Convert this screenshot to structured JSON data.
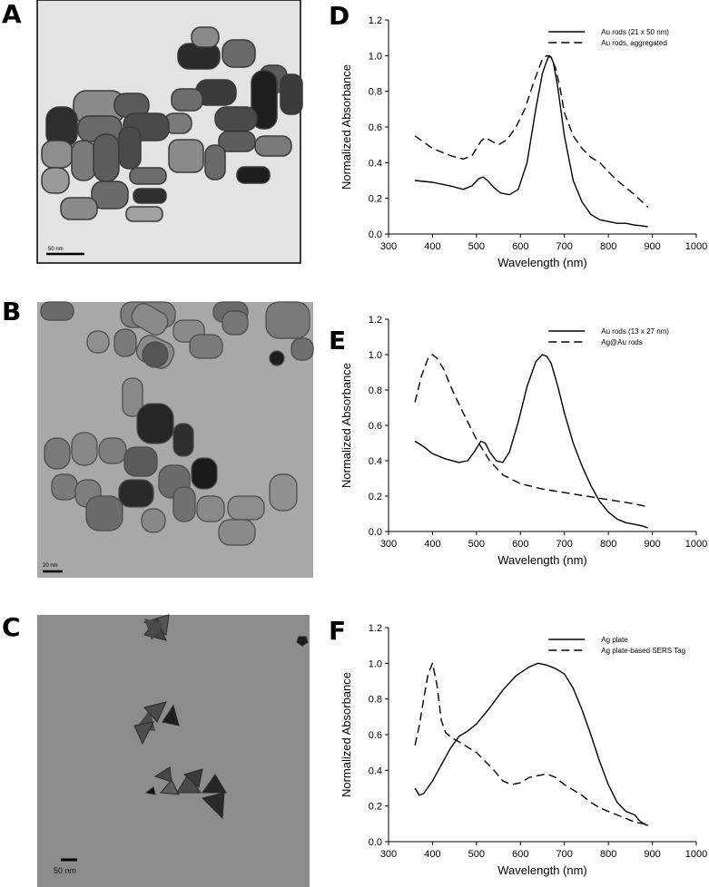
{
  "panels": {
    "A": {
      "letter": "A",
      "scalebar": "50 nm"
    },
    "B": {
      "letter": "B",
      "scalebar": "20 nm"
    },
    "C": {
      "letter": "C",
      "scalebar": "50 nm"
    },
    "D": {
      "letter": "D"
    },
    "E": {
      "letter": "E"
    },
    "F": {
      "letter": "F"
    }
  },
  "colors": {
    "line": "#000000",
    "tem_a_bg": "#e2e2e2",
    "tem_b_bg": "#a8a8a8",
    "tem_c_bg": "#8c8c8c"
  },
  "chart_data": [
    {
      "id": "D",
      "type": "line",
      "xlabel": "Wavelength (nm)",
      "ylabel": "Normalized Absorbance",
      "xlim": [
        300,
        1000
      ],
      "ylim": [
        0.0,
        1.2
      ],
      "xticks": [
        300,
        400,
        500,
        600,
        700,
        800,
        900,
        1000
      ],
      "yticks": [
        0.0,
        0.2,
        0.4,
        0.6,
        0.8,
        1.0,
        1.2
      ],
      "legend_position": "top-right",
      "series": [
        {
          "name": "Au rods (21 x 50 nm)",
          "style": "solid",
          "x": [
            360,
            400,
            440,
            470,
            490,
            505,
            515,
            525,
            540,
            555,
            575,
            595,
            615,
            635,
            650,
            660,
            665,
            670,
            675,
            685,
            700,
            720,
            740,
            760,
            780,
            800,
            820,
            840,
            860,
            880,
            890
          ],
          "y": [
            0.3,
            0.29,
            0.27,
            0.25,
            0.27,
            0.31,
            0.32,
            0.3,
            0.26,
            0.23,
            0.22,
            0.25,
            0.4,
            0.7,
            0.9,
            0.97,
            1.0,
            0.99,
            0.96,
            0.82,
            0.55,
            0.3,
            0.18,
            0.11,
            0.08,
            0.07,
            0.06,
            0.06,
            0.05,
            0.045,
            0.04
          ]
        },
        {
          "name": "Au rods, aggregated",
          "style": "dashed",
          "x": [
            360,
            400,
            440,
            470,
            490,
            510,
            520,
            535,
            550,
            570,
            590,
            610,
            630,
            650,
            660,
            670,
            680,
            690,
            700,
            720,
            740,
            760,
            780,
            800,
            820,
            840,
            860,
            890
          ],
          "y": [
            0.55,
            0.48,
            0.44,
            0.42,
            0.44,
            0.52,
            0.54,
            0.52,
            0.5,
            0.53,
            0.6,
            0.7,
            0.85,
            0.98,
            1.0,
            0.99,
            0.93,
            0.82,
            0.68,
            0.55,
            0.48,
            0.43,
            0.4,
            0.35,
            0.3,
            0.26,
            0.22,
            0.15
          ]
        }
      ]
    },
    {
      "id": "E",
      "type": "line",
      "xlabel": "Wavelength (nm)",
      "ylabel": "Normalized Absorbance",
      "xlim": [
        300,
        1000
      ],
      "ylim": [
        0.0,
        1.2
      ],
      "xticks": [
        300,
        400,
        500,
        600,
        700,
        800,
        900,
        1000
      ],
      "yticks": [
        0.0,
        0.2,
        0.4,
        0.6,
        0.8,
        1.0,
        1.2
      ],
      "legend_position": "top-right",
      "series": [
        {
          "name": "Au rods (13 x 27 nm)",
          "style": "solid",
          "x": [
            360,
            380,
            400,
            430,
            460,
            480,
            495,
            510,
            520,
            530,
            545,
            560,
            575,
            595,
            615,
            635,
            650,
            660,
            670,
            685,
            700,
            720,
            740,
            760,
            780,
            800,
            820,
            840,
            860,
            880,
            890
          ],
          "y": [
            0.51,
            0.48,
            0.44,
            0.41,
            0.39,
            0.4,
            0.45,
            0.51,
            0.5,
            0.45,
            0.4,
            0.39,
            0.45,
            0.62,
            0.82,
            0.96,
            1.0,
            0.99,
            0.95,
            0.82,
            0.67,
            0.5,
            0.37,
            0.26,
            0.17,
            0.11,
            0.07,
            0.05,
            0.04,
            0.03,
            0.02
          ]
        },
        {
          "name": "Ag@Au rods",
          "style": "dashed",
          "x": [
            360,
            375,
            390,
            400,
            410,
            425,
            445,
            470,
            500,
            530,
            560,
            600,
            650,
            700,
            750,
            800,
            850,
            890
          ],
          "y": [
            0.73,
            0.88,
            0.98,
            1.0,
            0.98,
            0.92,
            0.8,
            0.67,
            0.52,
            0.4,
            0.32,
            0.27,
            0.24,
            0.22,
            0.2,
            0.18,
            0.16,
            0.14
          ]
        }
      ]
    },
    {
      "id": "F",
      "type": "line",
      "xlabel": "Wavelength (nm)",
      "ylabel": "Normalized Absorbance",
      "xlim": [
        300,
        1000
      ],
      "ylim": [
        0.0,
        1.2
      ],
      "xticks": [
        300,
        400,
        500,
        600,
        700,
        800,
        900,
        1000
      ],
      "yticks": [
        0.0,
        0.2,
        0.4,
        0.6,
        0.8,
        1.0,
        1.2
      ],
      "legend_position": "top-right",
      "series": [
        {
          "name": "Ag plate",
          "style": "solid",
          "x": [
            360,
            370,
            380,
            400,
            420,
            440,
            460,
            480,
            500,
            530,
            560,
            590,
            620,
            640,
            660,
            680,
            700,
            720,
            740,
            760,
            780,
            800,
            820,
            840,
            860,
            870,
            880,
            890
          ],
          "y": [
            0.3,
            0.26,
            0.27,
            0.34,
            0.43,
            0.52,
            0.59,
            0.62,
            0.66,
            0.75,
            0.85,
            0.93,
            0.98,
            1.0,
            0.99,
            0.97,
            0.94,
            0.86,
            0.74,
            0.6,
            0.45,
            0.32,
            0.22,
            0.17,
            0.15,
            0.12,
            0.1,
            0.09
          ]
        },
        {
          "name": "Ag plate-based SERS Tag",
          "style": "dashed",
          "x": [
            360,
            370,
            380,
            390,
            400,
            410,
            420,
            430,
            445,
            460,
            480,
            500,
            520,
            540,
            560,
            580,
            600,
            620,
            640,
            660,
            680,
            700,
            720,
            740,
            760,
            780,
            800,
            820,
            840,
            860,
            880,
            890
          ],
          "y": [
            0.54,
            0.65,
            0.8,
            0.94,
            1.0,
            0.88,
            0.68,
            0.61,
            0.58,
            0.56,
            0.53,
            0.5,
            0.45,
            0.4,
            0.34,
            0.32,
            0.33,
            0.36,
            0.37,
            0.38,
            0.36,
            0.32,
            0.29,
            0.26,
            0.22,
            0.19,
            0.17,
            0.15,
            0.13,
            0.11,
            0.1,
            0.1
          ]
        }
      ]
    }
  ]
}
